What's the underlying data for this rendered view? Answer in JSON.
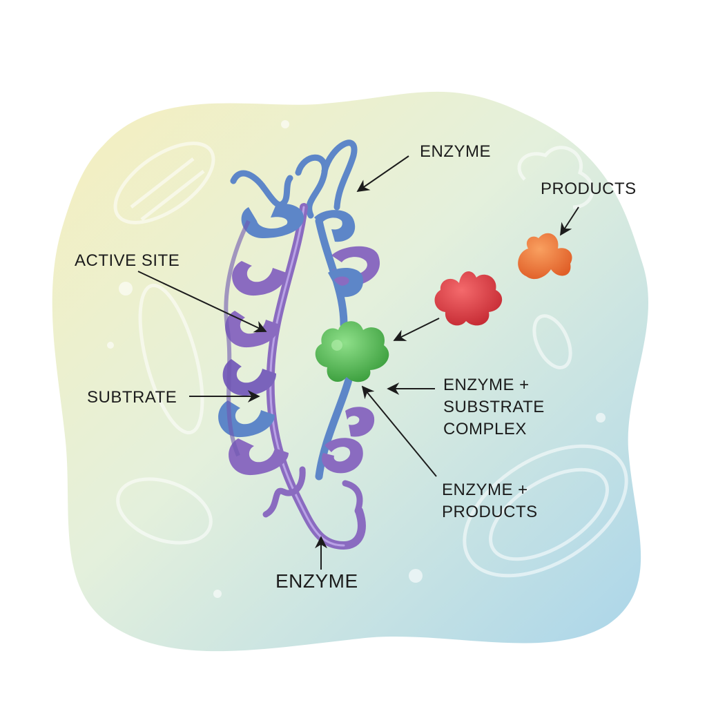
{
  "labels": {
    "enzyme_top": "ENZYME",
    "products_top": "PRODUCTS",
    "active_site": "ACTIVE SITE",
    "subtrate": "SUBTRATE",
    "complex_line1": "ENZYME +",
    "complex_line2": "SUBSTRATE",
    "complex_line3": "COMPLEX",
    "enzyme_products_line1": "ENZYME +",
    "enzyme_products_line2": "PRODUCTS",
    "enzyme_bottom": "ENZYME"
  },
  "colors": {
    "background_yellow": "#f4edbf",
    "background_blue": "#b9dcec",
    "helix_blue": "#5d86c8",
    "helix_purple": "#8a6bc0",
    "substrate_green": "#5cbf5a",
    "molecule_red": "#e2444a",
    "product_orange": "#ef7a3a",
    "arrow": "#1c1c1c"
  }
}
